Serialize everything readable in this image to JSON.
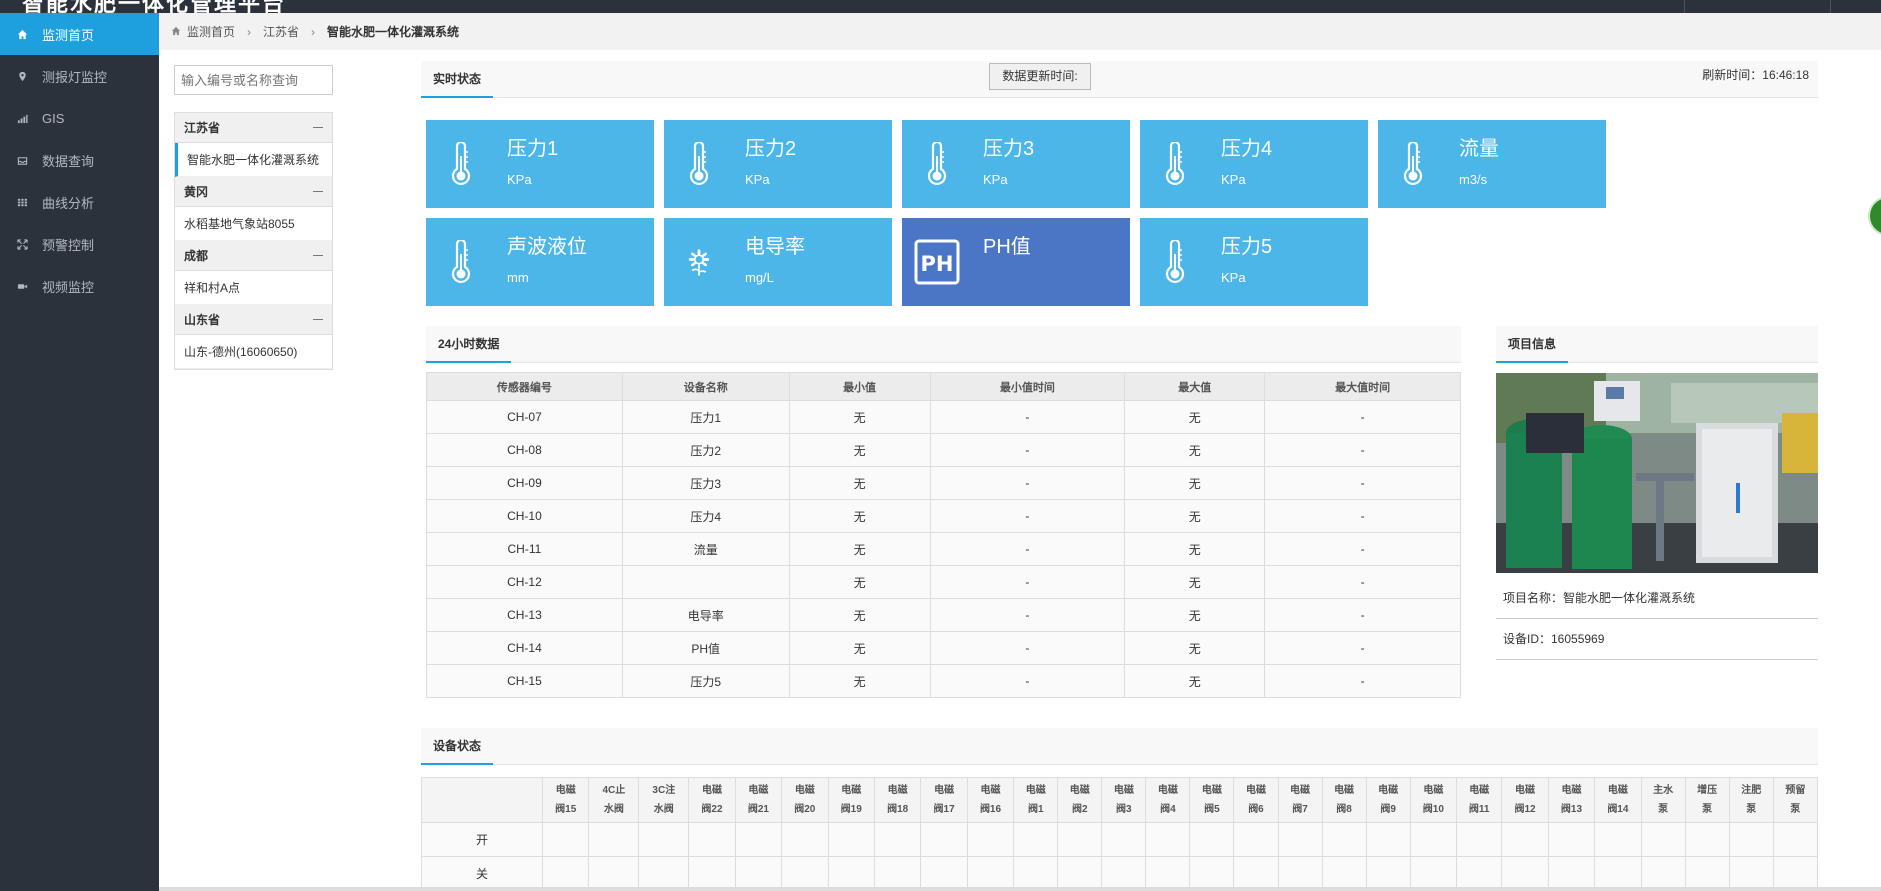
{
  "app": {
    "title": "智能水肥一体化管理平台"
  },
  "sidebar": {
    "items": [
      {
        "label": "监测首页",
        "icon": "home-icon",
        "active": true
      },
      {
        "label": "测报灯监控",
        "icon": "location-icon"
      },
      {
        "label": "GIS",
        "icon": "signal-icon"
      },
      {
        "label": "数据查询",
        "icon": "inbox-icon"
      },
      {
        "label": "曲线分析",
        "icon": "grid-icon"
      },
      {
        "label": "预警控制",
        "icon": "expand-icon"
      },
      {
        "label": "视频监控",
        "icon": "camera-icon"
      }
    ]
  },
  "breadcrumb": {
    "home": "监测首页",
    "province": "江苏省",
    "current": "智能水肥一体化灌溉系统"
  },
  "tree": {
    "search_placeholder": "输入编号或名称查询",
    "groups": [
      {
        "name": "江苏省",
        "leaf": "智能水肥一体化灌溉系统"
      },
      {
        "name": "黄冈",
        "leaf": "水稻基地气象站8055"
      },
      {
        "name": "成都",
        "leaf": "祥和村A点"
      },
      {
        "name": "山东省",
        "leaf": "山东-德州(16060650)"
      }
    ]
  },
  "realtime": {
    "tab": "实时状态",
    "update_button": "数据更新时间:",
    "refresh": "刷新时间：16:46:18",
    "tiles": [
      {
        "name": "压力1",
        "unit": "KPa",
        "icon": "thermometer-icon"
      },
      {
        "name": "压力2",
        "unit": "KPa",
        "icon": "thermometer-icon"
      },
      {
        "name": "压力3",
        "unit": "KPa",
        "icon": "thermometer-icon"
      },
      {
        "name": "压力4",
        "unit": "KPa",
        "icon": "thermometer-icon"
      },
      {
        "name": "流量",
        "unit": "m3/s",
        "icon": "thermometer-icon"
      },
      {
        "name": "声波液位",
        "unit": "mm",
        "icon": "thermometer-icon"
      },
      {
        "name": "电导率",
        "unit": "mg/L",
        "icon": "flower-icon"
      },
      {
        "name": "PH值",
        "unit": "",
        "icon": "ph-icon"
      },
      {
        "name": "压力5",
        "unit": "KPa",
        "icon": "thermometer-icon"
      }
    ]
  },
  "data24": {
    "tab": "24小时数据",
    "headers": [
      "传感器编号",
      "设备名称",
      "最小值",
      "最小值时间",
      "最大值",
      "最大值时间"
    ],
    "rows": [
      [
        "CH-07",
        "压力1",
        "无",
        "-",
        "无",
        "-"
      ],
      [
        "CH-08",
        "压力2",
        "无",
        "-",
        "无",
        "-"
      ],
      [
        "CH-09",
        "压力3",
        "无",
        "-",
        "无",
        "-"
      ],
      [
        "CH-10",
        "压力4",
        "无",
        "-",
        "无",
        "-"
      ],
      [
        "CH-11",
        "流量",
        "无",
        "-",
        "无",
        "-"
      ],
      [
        "CH-12",
        "",
        "无",
        "-",
        "无",
        "-"
      ],
      [
        "CH-13",
        "电导率",
        "无",
        "-",
        "无",
        "-"
      ],
      [
        "CH-14",
        "PH值",
        "无",
        "-",
        "无",
        "-"
      ],
      [
        "CH-15",
        "压力5",
        "无",
        "-",
        "无",
        "-"
      ]
    ]
  },
  "project": {
    "tab": "项目信息",
    "name_line": "项目名称：智能水肥一体化灌溉系统",
    "id_line": "设备ID：16055969"
  },
  "device": {
    "tab": "设备状态",
    "columns": [
      [
        "电磁",
        "阀15"
      ],
      [
        "4C止",
        "水阀"
      ],
      [
        "3C注",
        "水阀"
      ],
      [
        "电磁",
        "阀22"
      ],
      [
        "电磁",
        "阀21"
      ],
      [
        "电磁",
        "阀20"
      ],
      [
        "电磁",
        "阀19"
      ],
      [
        "电磁",
        "阀18"
      ],
      [
        "电磁",
        "阀17"
      ],
      [
        "电磁",
        "阀16"
      ],
      [
        "电磁",
        "阀1"
      ],
      [
        "电磁",
        "阀2"
      ],
      [
        "电磁",
        "阀3"
      ],
      [
        "电磁",
        "阀4"
      ],
      [
        "电磁",
        "阀5"
      ],
      [
        "电磁",
        "阀6"
      ],
      [
        "电磁",
        "阀7"
      ],
      [
        "电磁",
        "阀8"
      ],
      [
        "电磁",
        "阀9"
      ],
      [
        "电磁",
        "阀10"
      ],
      [
        "电磁",
        "阀11"
      ],
      [
        "电磁",
        "阀12"
      ],
      [
        "电磁",
        "阀13"
      ],
      [
        "电磁",
        "阀14"
      ],
      [
        "主水",
        "泵"
      ],
      [
        "增压",
        "泵"
      ],
      [
        "注肥",
        "泵"
      ],
      [
        "预留",
        "泵"
      ]
    ],
    "row_labels": [
      "开",
      "关"
    ]
  },
  "colors": {
    "accent": "#1e9fde",
    "tile": "#4cb6e8",
    "tile_dark": "#4a76c5",
    "sidebar": "#2b323b"
  }
}
